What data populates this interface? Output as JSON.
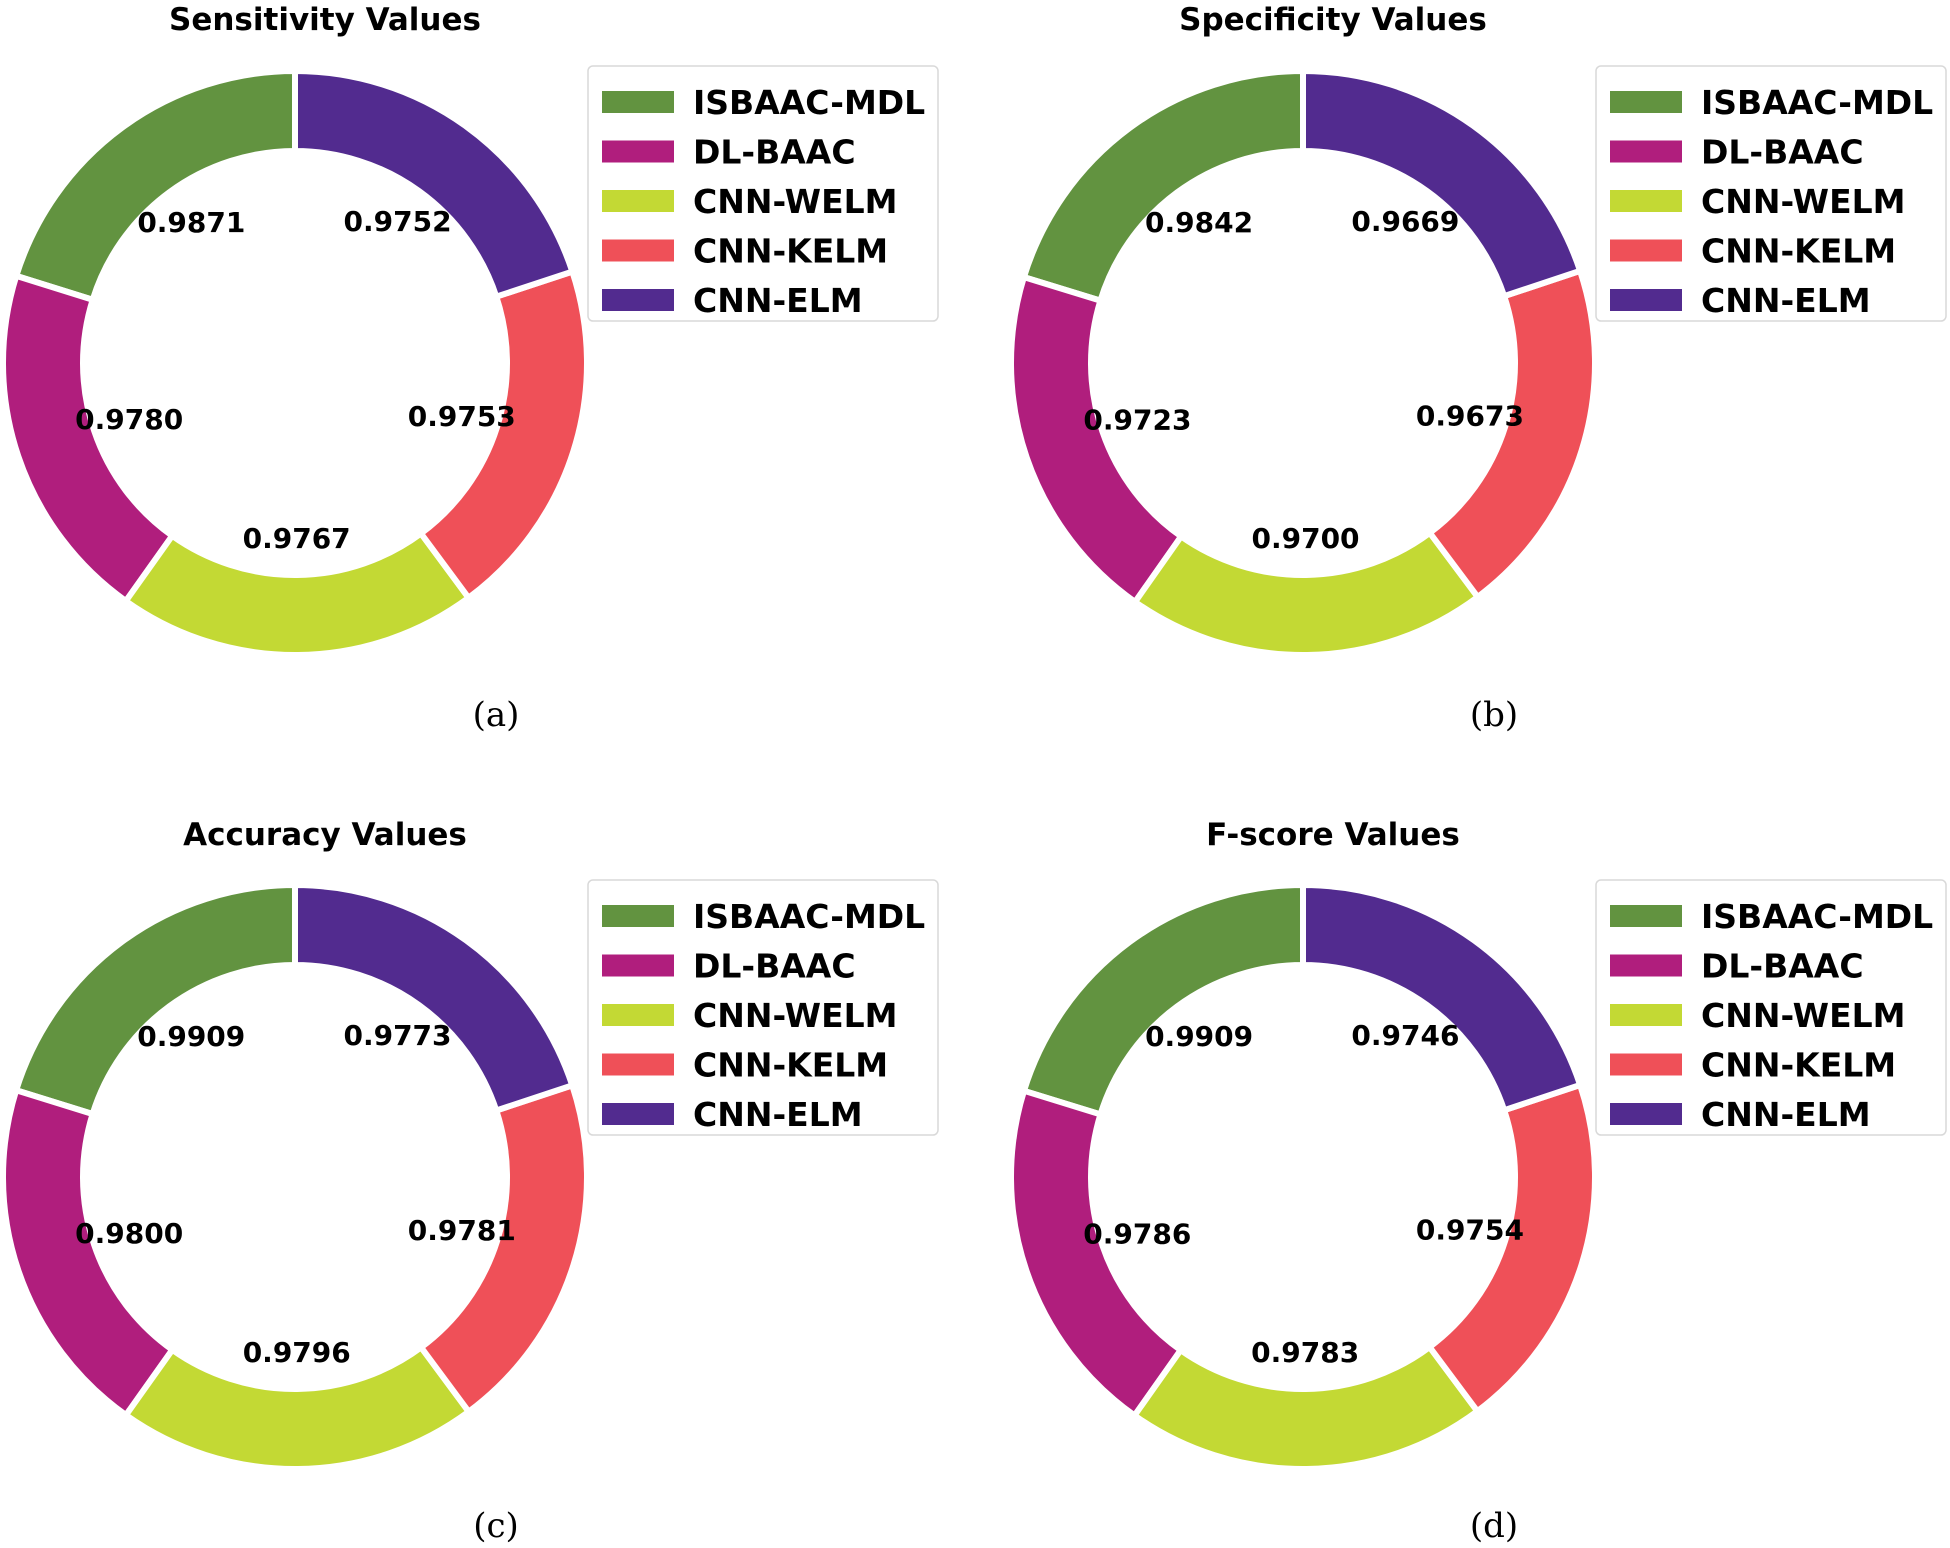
{
  "colors": {
    "ISBAAC-MDL": "#629340",
    "DL-BAAC": "#b01e7d",
    "CNN-WELM": "#c3d934",
    "CNN-KELM": "#ef5058",
    "CNN-ELM": "#522b8f"
  },
  "chart_data": [
    {
      "type": "pie",
      "title": "Sensitivity Values",
      "caption": "(a)",
      "categories": [
        "ISBAAC-MDL",
        "DL-BAAC",
        "CNN-WELM",
        "CNN-KELM",
        "CNN-ELM"
      ],
      "values": [
        0.9871,
        0.978,
        0.9767,
        0.9753,
        0.9752
      ],
      "labels": [
        "0.9871",
        "0.9780",
        "0.9767",
        "0.9753",
        "0.9752"
      ],
      "legend": [
        "ISBAAC-MDL",
        "DL-BAAC",
        "CNN-WELM",
        "CNN-KELM",
        "CNN-ELM"
      ],
      "legend_position": "right"
    },
    {
      "type": "pie",
      "title": "Specificity Values",
      "caption": "(b)",
      "categories": [
        "ISBAAC-MDL",
        "DL-BAAC",
        "CNN-WELM",
        "CNN-KELM",
        "CNN-ELM"
      ],
      "values": [
        0.9842,
        0.9723,
        0.97,
        0.9673,
        0.9669
      ],
      "labels": [
        "0.9842",
        "0.9723",
        "0.9700",
        "0.9673",
        "0.9669"
      ],
      "legend": [
        "ISBAAC-MDL",
        "DL-BAAC",
        "CNN-WELM",
        "CNN-KELM",
        "CNN-ELM"
      ],
      "legend_position": "right"
    },
    {
      "type": "pie",
      "title": "Accuracy Values",
      "caption": "(c)",
      "categories": [
        "ISBAAC-MDL",
        "DL-BAAC",
        "CNN-WELM",
        "CNN-KELM",
        "CNN-ELM"
      ],
      "values": [
        0.9909,
        0.98,
        0.9796,
        0.9781,
        0.9773
      ],
      "labels": [
        "0.9909",
        "0.9800",
        "0.9796",
        "0.9781",
        "0.9773"
      ],
      "legend": [
        "ISBAAC-MDL",
        "DL-BAAC",
        "CNN-WELM",
        "CNN-KELM",
        "CNN-ELM"
      ],
      "legend_position": "right"
    },
    {
      "type": "pie",
      "title": "F-score Values",
      "caption": "(d)",
      "categories": [
        "ISBAAC-MDL",
        "DL-BAAC",
        "CNN-WELM",
        "CNN-KELM",
        "CNN-ELM"
      ],
      "values": [
        0.9909,
        0.9786,
        0.9783,
        0.9754,
        0.9746
      ],
      "labels": [
        "0.9909",
        "0.9786",
        "0.9783",
        "0.9754",
        "0.9746"
      ],
      "legend": [
        "ISBAAC-MDL",
        "DL-BAAC",
        "CNN-WELM",
        "CNN-KELM",
        "CNN-ELM"
      ],
      "legend_position": "right"
    }
  ]
}
